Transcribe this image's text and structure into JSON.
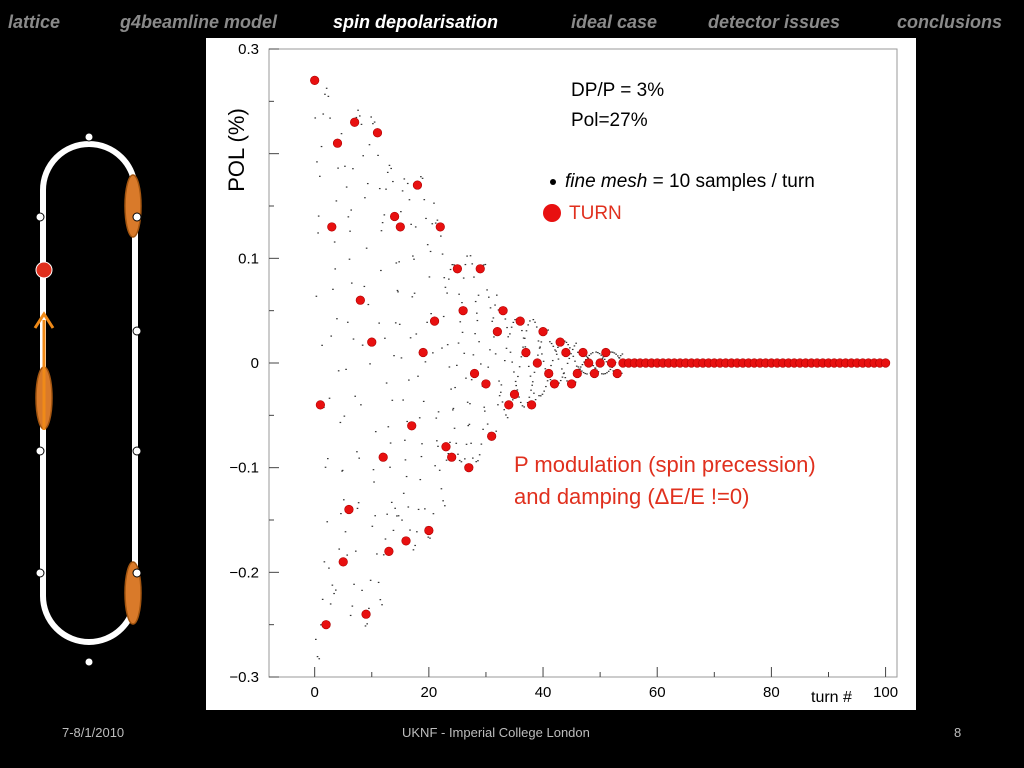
{
  "nav": {
    "items": [
      {
        "label": "lattice",
        "active": false
      },
      {
        "label": "g4beamline model",
        "active": false
      },
      {
        "label": "spin depolarisation",
        "active": true
      },
      {
        "label": "ideal case",
        "active": false
      },
      {
        "label": "detector issues",
        "active": false
      },
      {
        "label": "conclusions",
        "active": false
      }
    ]
  },
  "colors": {
    "accent_red": "#e0301e",
    "marker_red": "#e81010",
    "orange": "#f08a18",
    "inactive_nav": "#8a8a8a"
  },
  "annotations": {
    "dp_line": "DP/P = 3%",
    "pol_line": "Pol=27%",
    "legend_fine_mesh_italic": "fine mesh",
    "legend_fine_mesh_rest": " = 10 samples / turn",
    "legend_turn": "TURN",
    "note_line1": "P modulation (spin precession)",
    "note_line2": "and damping (ΔE/E !=0)"
  },
  "footer": {
    "date": "7-8/1/2010",
    "center": "UKNF - Imperial College London",
    "page": "8"
  },
  "chart_data": {
    "type": "scatter",
    "xlabel": "turn #",
    "ylabel": "POL (%)",
    "xlim": [
      -8,
      102
    ],
    "ylim": [
      -0.3,
      0.3
    ],
    "xticks": [
      0,
      20,
      40,
      60,
      80,
      100
    ],
    "yticks": [
      -0.3,
      -0.2,
      -0.1,
      0,
      0.1,
      0.3
    ],
    "ytick_labels": [
      "−0.3",
      "−0.2",
      "−0.1",
      "0",
      "0.1",
      "0.3"
    ],
    "series": [
      {
        "name": "TURN",
        "x": [
          0,
          1,
          2,
          3,
          4,
          5,
          6,
          7,
          8,
          9,
          10,
          11,
          12,
          13,
          14,
          15,
          16,
          17,
          18,
          19,
          20,
          21,
          22,
          23,
          24,
          25,
          26,
          27,
          28,
          29,
          30,
          31,
          32,
          33,
          34,
          35,
          36,
          37,
          38,
          39,
          40,
          41,
          42,
          43,
          44,
          45,
          46,
          47,
          48,
          49,
          50,
          51,
          52,
          53,
          54,
          55,
          56,
          57,
          58,
          59,
          60,
          61,
          62,
          63,
          64,
          65,
          66,
          67,
          68,
          69,
          70,
          71,
          72,
          73,
          74,
          75,
          76,
          77,
          78,
          79,
          80,
          81,
          82,
          83,
          84,
          85,
          86,
          87,
          88,
          89,
          90,
          91,
          92,
          93,
          94,
          95,
          96,
          97,
          98,
          99,
          100
        ],
        "y": [
          0.27,
          -0.04,
          -0.25,
          0.13,
          0.21,
          -0.19,
          -0.14,
          0.23,
          0.06,
          -0.24,
          0.02,
          0.22,
          -0.09,
          -0.18,
          0.14,
          0.13,
          -0.17,
          -0.06,
          0.17,
          0.01,
          -0.16,
          0.04,
          0.13,
          -0.08,
          -0.09,
          0.09,
          0.05,
          -0.1,
          -0.01,
          0.09,
          -0.02,
          -0.07,
          0.03,
          0.05,
          -0.04,
          -0.03,
          0.04,
          0.01,
          -0.04,
          0.0,
          0.03,
          -0.01,
          -0.02,
          0.02,
          0.01,
          -0.02,
          -0.01,
          0.01,
          0.0,
          -0.01,
          0.0,
          0.01,
          0.0,
          -0.01,
          0,
          0,
          0,
          0,
          0,
          0,
          0,
          0,
          0,
          0,
          0,
          0,
          0,
          0,
          0,
          0,
          0,
          0,
          0,
          0,
          0,
          0,
          0,
          0,
          0,
          0,
          0,
          0,
          0,
          0,
          0,
          0,
          0,
          0,
          0,
          0,
          0,
          0,
          0,
          0,
          0,
          0,
          0,
          0,
          0,
          0,
          0
        ]
      }
    ]
  }
}
